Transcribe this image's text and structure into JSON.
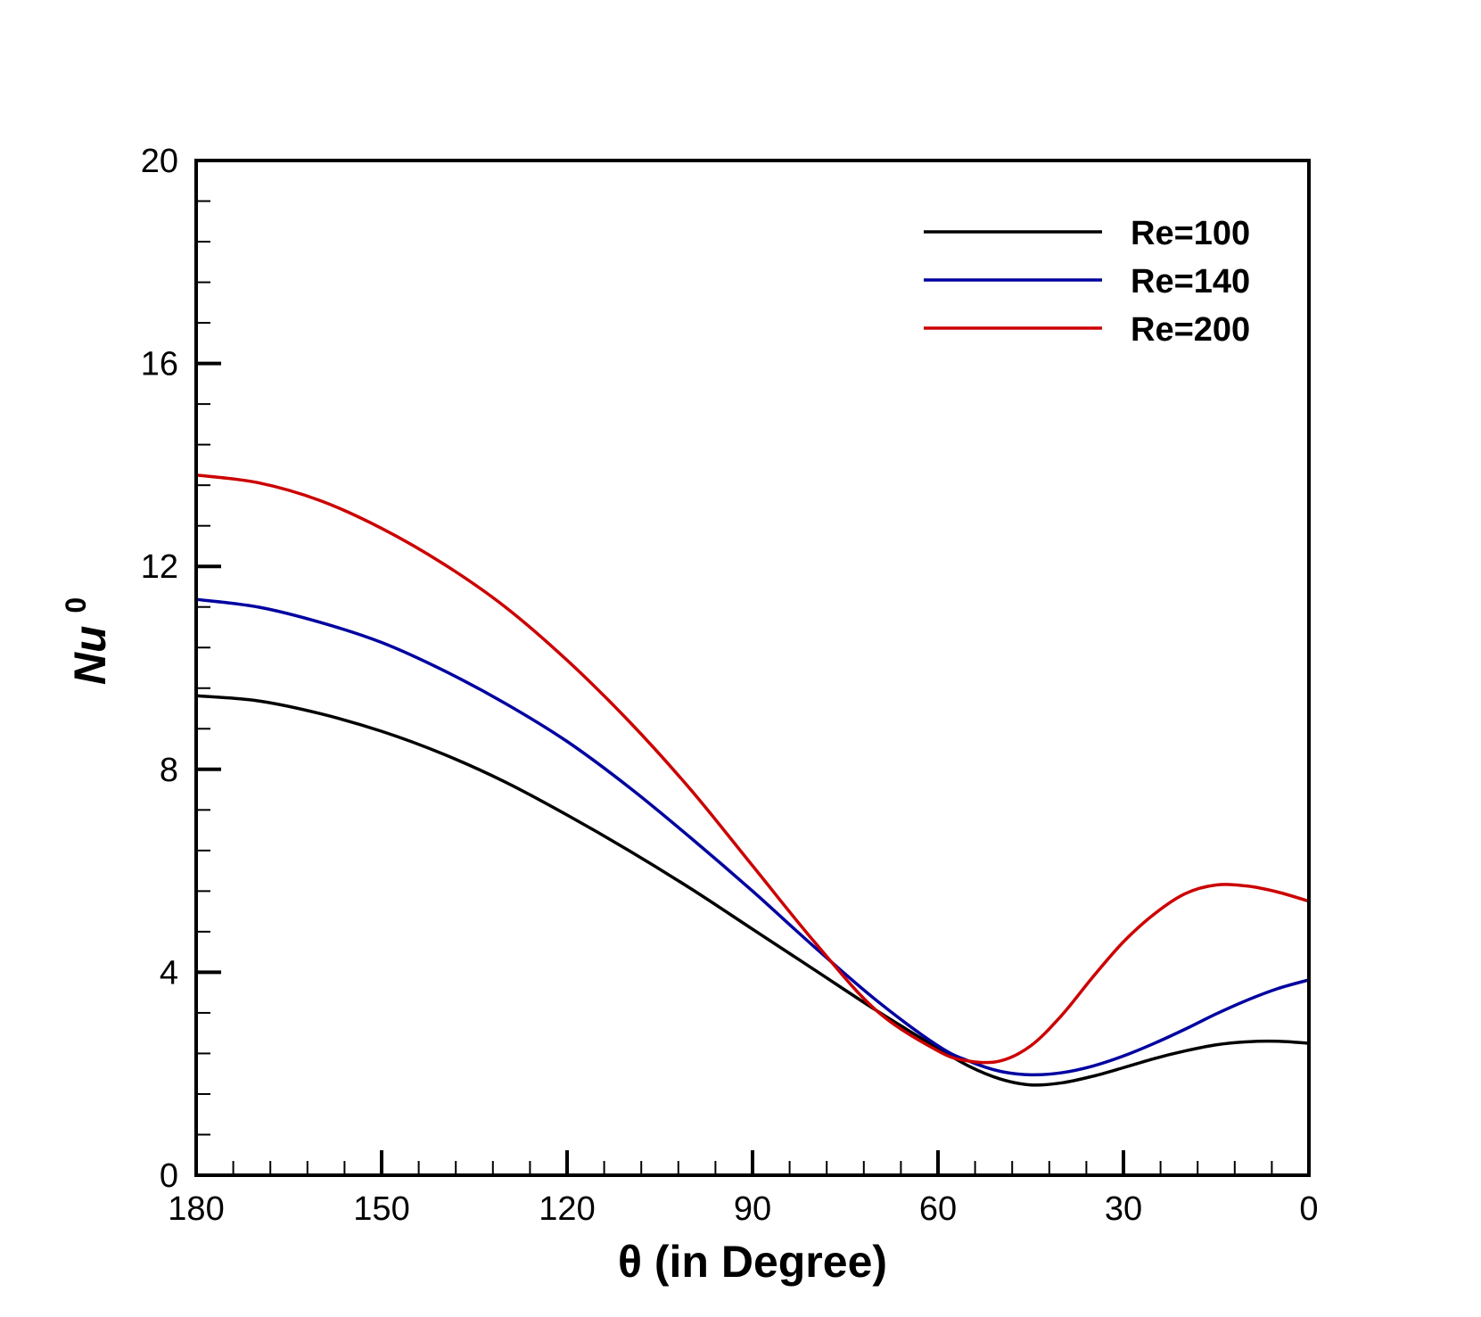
{
  "chart_data": {
    "type": "line",
    "title": "",
    "xlabel": "θ (in Degree)",
    "ylabel": "Nu",
    "ylabel_superscript": "0",
    "xlim": [
      180,
      0
    ],
    "ylim": [
      0,
      20
    ],
    "x_major_ticks": [
      180,
      150,
      120,
      90,
      60,
      30,
      0
    ],
    "x_tick_labels": [
      "180",
      "150",
      "120",
      "90",
      "60",
      "30",
      "0"
    ],
    "y_major_ticks": [
      0,
      4,
      8,
      12,
      16,
      20
    ],
    "y_tick_labels": [
      "0",
      "4",
      "8",
      "12",
      "16",
      "20"
    ],
    "x_minor_step": 6,
    "y_minor_step": 0.8,
    "grid": false,
    "legend_position": "top-right",
    "x": [
      180,
      170,
      160,
      150,
      140,
      130,
      120,
      110,
      100,
      90,
      80,
      70,
      60,
      55,
      50,
      45,
      40,
      35,
      30,
      25,
      20,
      15,
      10,
      5,
      0
    ],
    "series": [
      {
        "name": "Re=100",
        "color": "#000000",
        "values": [
          9.45,
          9.35,
          9.1,
          8.75,
          8.3,
          7.75,
          7.1,
          6.4,
          5.65,
          4.85,
          4.05,
          3.25,
          2.5,
          2.15,
          1.9,
          1.78,
          1.82,
          1.95,
          2.12,
          2.3,
          2.45,
          2.57,
          2.63,
          2.64,
          2.6
        ]
      },
      {
        "name": "Re=140",
        "color": "#0000a0",
        "values": [
          11.35,
          11.2,
          10.9,
          10.5,
          9.95,
          9.3,
          8.55,
          7.65,
          6.65,
          5.6,
          4.5,
          3.45,
          2.55,
          2.25,
          2.05,
          1.98,
          2.02,
          2.15,
          2.35,
          2.6,
          2.88,
          3.18,
          3.45,
          3.68,
          3.85
        ]
      },
      {
        "name": "Re=200",
        "color": "#cc0000",
        "values": [
          13.8,
          13.65,
          13.3,
          12.75,
          12.05,
          11.2,
          10.15,
          8.95,
          7.6,
          6.1,
          4.6,
          3.25,
          2.45,
          2.25,
          2.25,
          2.55,
          3.15,
          3.9,
          4.6,
          5.15,
          5.55,
          5.72,
          5.7,
          5.58,
          5.4
        ]
      }
    ]
  }
}
